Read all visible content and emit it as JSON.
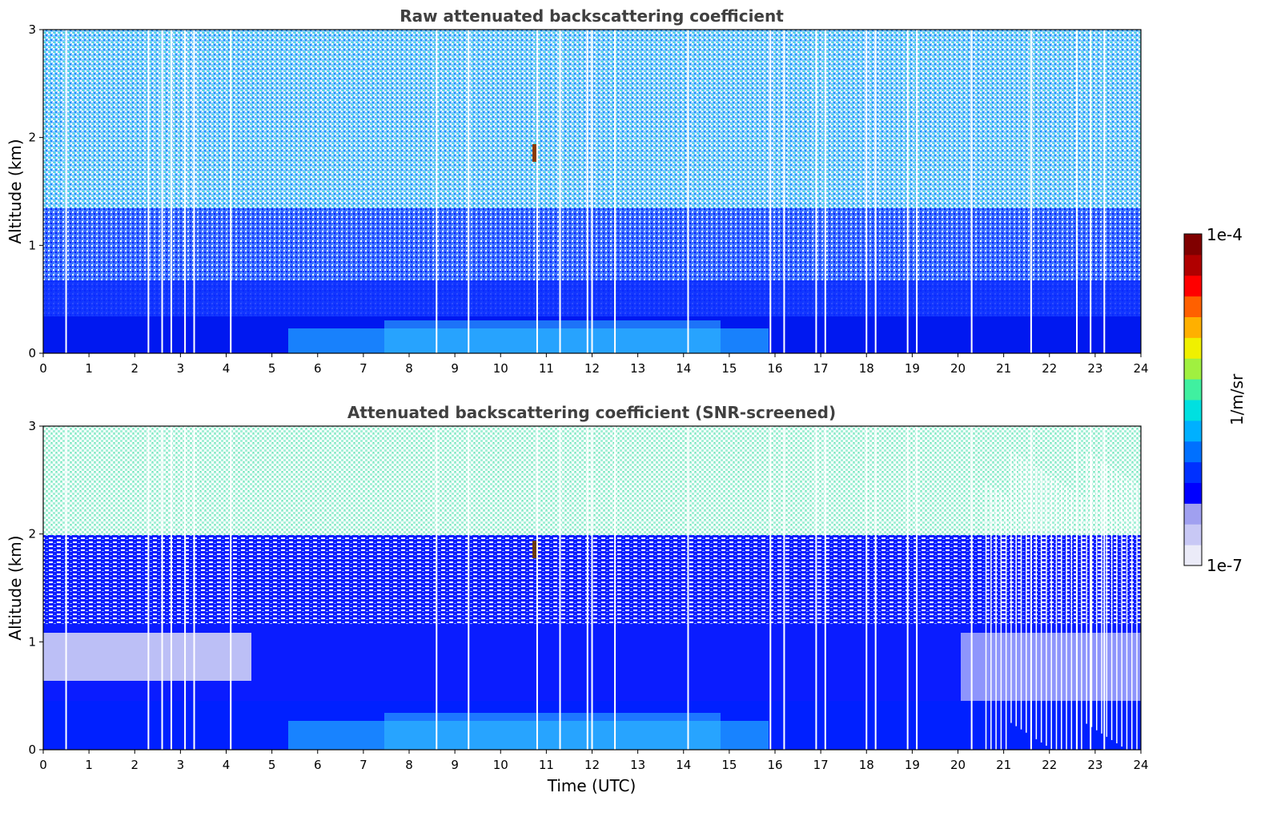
{
  "chart_data": [
    {
      "type": "heatmap",
      "title": "Raw attenuated backscattering coefficient",
      "xlabel": "",
      "ylabel": "Altitude (km)",
      "xlim": [
        0,
        24
      ],
      "ylim": [
        0,
        3
      ],
      "xticks": [
        "0",
        "1",
        "2",
        "3",
        "4",
        "5",
        "6",
        "7",
        "8",
        "9",
        "10",
        "11",
        "12",
        "13",
        "14",
        "15",
        "16",
        "17",
        "18",
        "19",
        "20",
        "21",
        "22",
        "23",
        "24"
      ],
      "yticks": [
        "0",
        "1",
        "2",
        "3"
      ],
      "color_scale": {
        "min_label": "1e-7",
        "max_label": "1e-4",
        "unit": "1/m/sr",
        "log": true
      },
      "description_points": {
        "boundary_layer_top_km": 0.35,
        "gaps_utc": [
          0.5,
          2.3,
          2.6,
          2.8,
          3.1,
          3.3,
          4.1,
          8.6,
          9.3,
          10.8,
          11.3,
          11.9,
          12.0,
          12.5,
          14.1,
          15.9,
          16.2,
          16.9,
          17.1,
          18.0,
          18.2,
          18.9,
          19.1,
          20.3,
          21.6,
          22.6,
          22.9,
          23.2
        ],
        "feature_utc": 10.8,
        "feature_altitude_km": 1.85
      }
    },
    {
      "type": "heatmap",
      "title": "Attenuated backscattering coefficient (SNR-screened)",
      "xlabel": "Time (UTC)",
      "ylabel": "Altitude (km)",
      "xlim": [
        0,
        24
      ],
      "ylim": [
        0,
        3
      ],
      "xticks": [
        "0",
        "1",
        "2",
        "3",
        "4",
        "5",
        "6",
        "7",
        "8",
        "9",
        "10",
        "11",
        "12",
        "13",
        "14",
        "15",
        "16",
        "17",
        "18",
        "19",
        "20",
        "21",
        "22",
        "23",
        "24"
      ],
      "yticks": [
        "0",
        "1",
        "2",
        "3"
      ],
      "color_scale": {
        "min_label": "1e-7",
        "max_label": "1e-4",
        "unit": "1/m/sr",
        "log": true
      },
      "description_points": {
        "boundary_layer_top_km": 0.35,
        "screened_above_km": 2.0,
        "feature_utc": 10.8,
        "feature_altitude_km": 1.85
      }
    }
  ],
  "colorbar": {
    "max_label": "1e-4",
    "min_label": "1e-7",
    "unit_label": "1/m/sr",
    "colors": [
      "#ebebf8",
      "#c8c8f5",
      "#a0a0f0",
      "#0000ff",
      "#0030ff",
      "#0070ff",
      "#00b0ff",
      "#00e0e0",
      "#40f0a0",
      "#a0f040",
      "#f0f000",
      "#ffb000",
      "#ff6000",
      "#ff0000",
      "#b00000",
      "#800000"
    ]
  }
}
